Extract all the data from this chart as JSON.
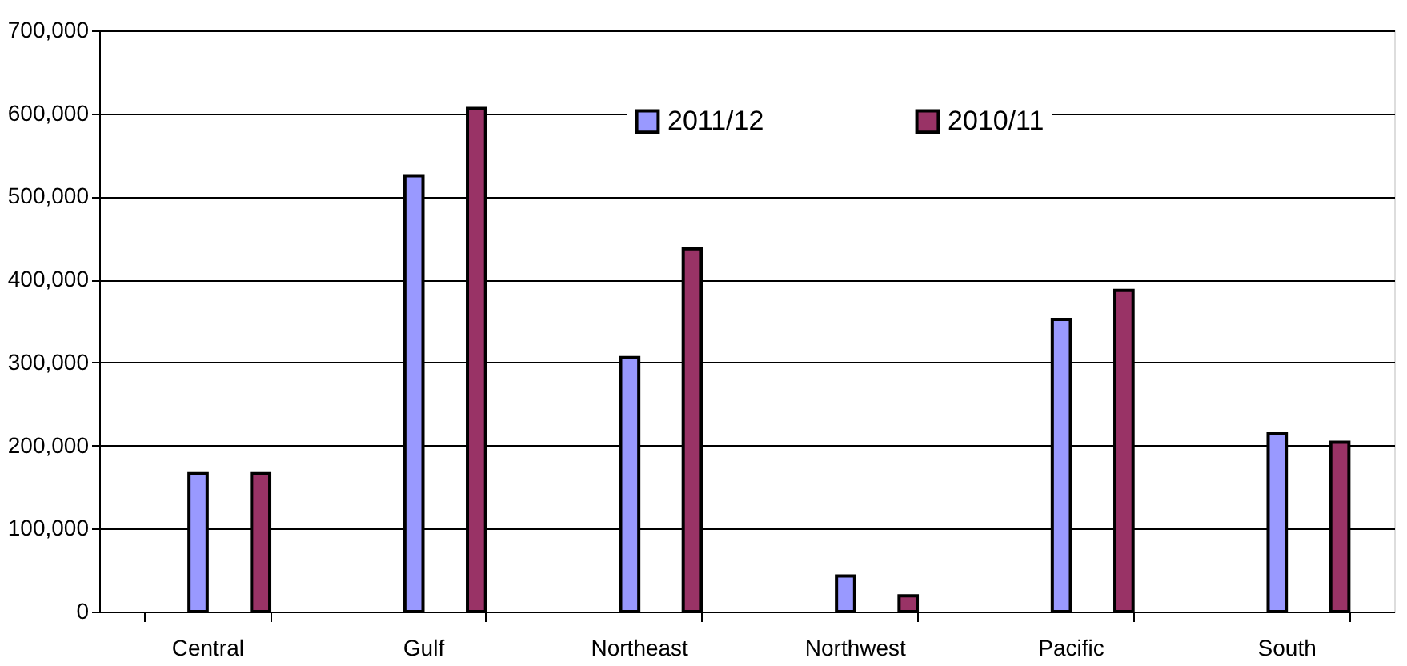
{
  "chart_data": {
    "type": "bar",
    "categories": [
      "Central",
      "Gulf",
      "Northeast",
      "Northwest",
      "Pacific",
      "South"
    ],
    "series": [
      {
        "name": "2011/12",
        "color": "#9999ff",
        "values": [
          166000,
          525000,
          306000,
          43000,
          352000,
          214000
        ]
      },
      {
        "name": "2010/11",
        "color": "#993366",
        "values": [
          166000,
          606000,
          437000,
          19000,
          387000,
          204000
        ]
      }
    ],
    "ylim": [
      0,
      700000
    ],
    "yticks": [
      {
        "value": 0,
        "label": "0"
      },
      {
        "value": 100000,
        "label": "100,000"
      },
      {
        "value": 200000,
        "label": "200,000"
      },
      {
        "value": 300000,
        "label": "300,000"
      },
      {
        "value": 400000,
        "label": "400,000"
      },
      {
        "value": 500000,
        "label": "500,000"
      },
      {
        "value": 600000,
        "label": "600,000"
      },
      {
        "value": 700000,
        "label": "700,000"
      }
    ],
    "grid": "y",
    "legend": "top"
  }
}
